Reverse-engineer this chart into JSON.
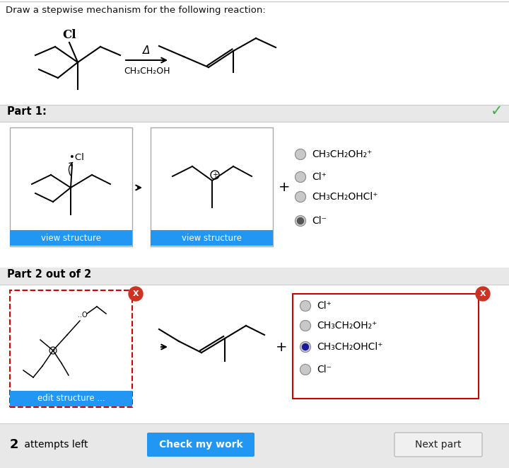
{
  "title": "Draw a stepwise mechanism for the following reaction:",
  "bg_color": "#ffffff",
  "header_bar_color": "#e0e0e0",
  "part1_label": "Part 1:",
  "part2_label": "Part 2 out of 2",
  "radio_options_part1": [
    "CH₃CH₂OH₂⁺",
    "Cl⁺",
    "CH₃CH₂OHCl⁺",
    "Cl⁻"
  ],
  "radio_selected_part1": 3,
  "radio_options_part2": [
    "Cl⁺",
    "CH₃CH₂OH₂⁺",
    "CH₃CH₂OHCl⁺",
    "Cl⁻"
  ],
  "radio_selected_part2": 2,
  "view_structure_color": "#2196F3",
  "edit_structure_color": "#2196F3",
  "check_button_color": "#2196F3",
  "next_button_color": "#e8e8e8",
  "attempts_text": "2  attempts left",
  "check_text": "Check my work",
  "next_text": "Next part",
  "red_border_color": "#cc0000",
  "green_check_color": "#4CAF50",
  "separator_color": "#cccccc",
  "part1_bar_color": "#e8e8e8",
  "bottom_bar_color": "#e8e8e8"
}
